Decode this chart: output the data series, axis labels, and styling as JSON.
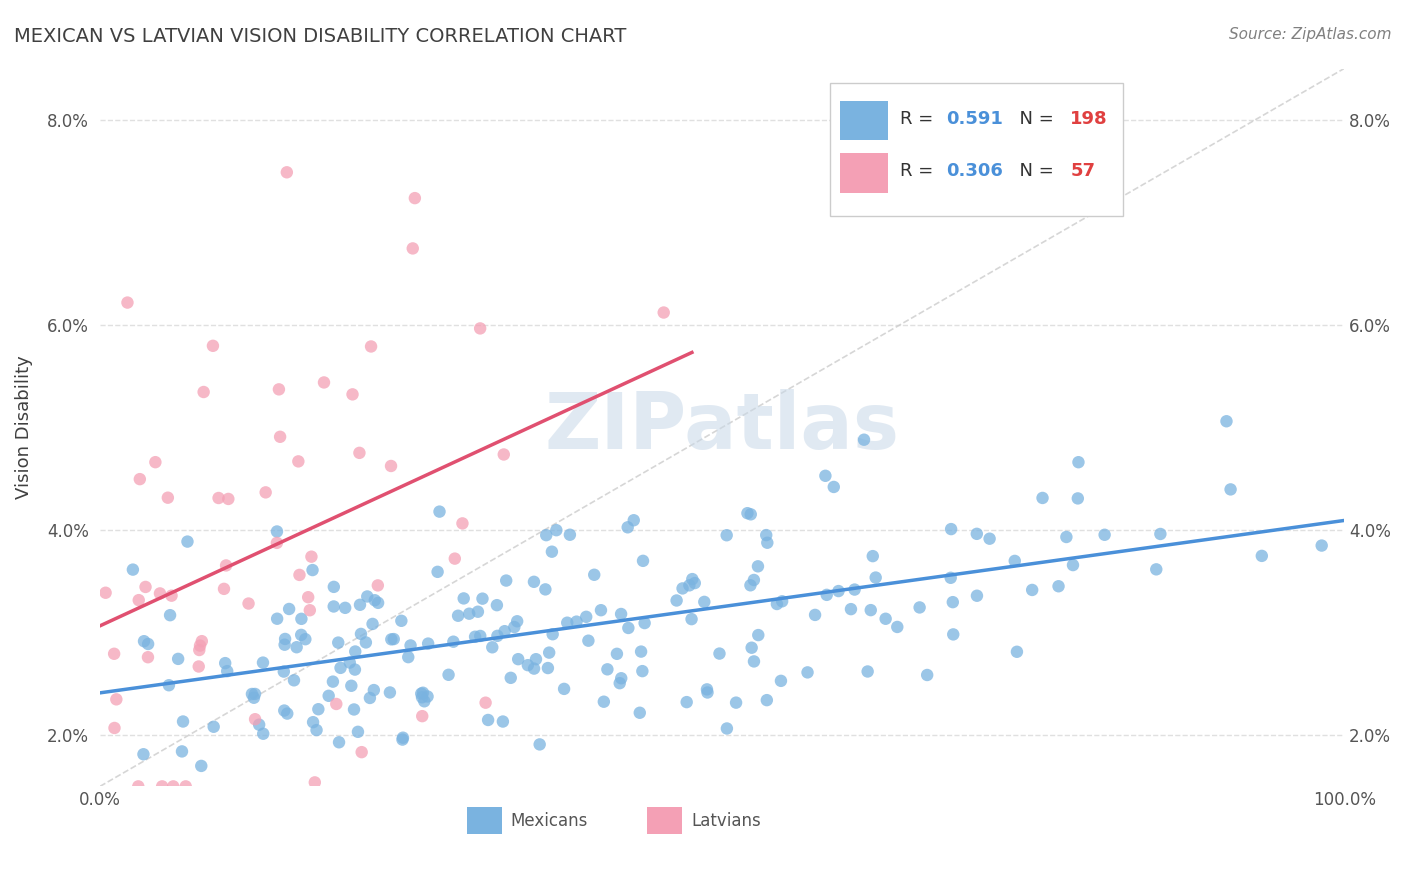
{
  "title": "MEXICAN VS LATVIAN VISION DISABILITY CORRELATION CHART",
  "source": "Source: ZipAtlas.com",
  "ylabel": "Vision Disability",
  "xlim": [
    0,
    1
  ],
  "ylim": [
    0.015,
    0.085
  ],
  "yticks": [
    0.02,
    0.04,
    0.06,
    0.08
  ],
  "ytick_labels": [
    "2.0%",
    "4.0%",
    "6.0%",
    "8.0%"
  ],
  "xticks": [
    0.0,
    0.2,
    0.4,
    0.6,
    0.8,
    1.0
  ],
  "mexican_R": 0.591,
  "mexican_N": 198,
  "latvian_R": 0.306,
  "latvian_N": 57,
  "mexican_color": "#7ab3e0",
  "latvian_color": "#f4a0b5",
  "mexican_line_color": "#4a90d9",
  "latvian_line_color": "#e05070",
  "diagonal_color": "#cccccc",
  "background_color": "#ffffff",
  "grid_color": "#e0e0e0",
  "watermark": "ZIPatlas",
  "legend_mexican_label": "Mexicans",
  "legend_latvian_label": "Latvians",
  "title_color": "#404040",
  "source_color": "#808080",
  "seed": 42
}
